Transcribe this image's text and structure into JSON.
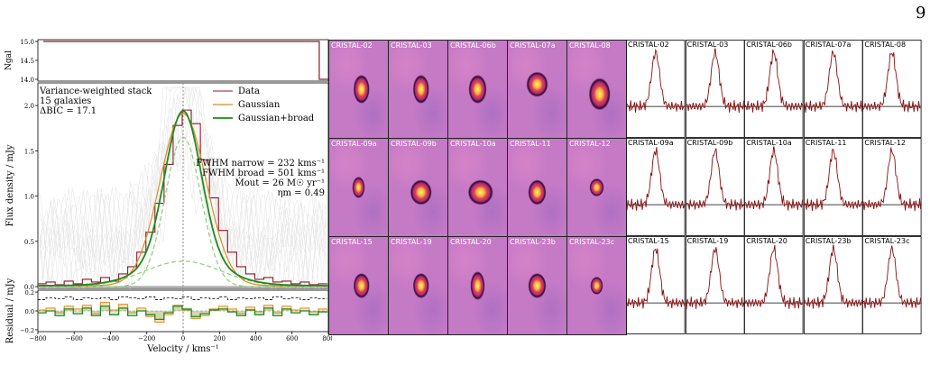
{
  "page_number": "9",
  "colors": {
    "data": "#8b1a2b",
    "gaussian": "#e08a1e",
    "gaussian_broad": "#1f8a1f",
    "component_dashed": "#8ccf7a",
    "thumb_bg": "#c57ac6",
    "spectrum_line": "#8b1010",
    "axis": "#000000"
  },
  "main_panel": {
    "annotation_lines": [
      "Variance-weighted stack",
      "15 galaxies",
      "ΔBIC = 17.1"
    ],
    "fit_lines": [
      "FWHM narrow = 232 kms⁻¹",
      "FWHM broad = 501 kms⁻¹",
      "Ṁout = 26 M☉ yr⁻¹",
      "ηm = 0.49"
    ]
  },
  "chart_data": [
    {
      "type": "line",
      "panel": "ngal",
      "ylabel": "Ngal",
      "yticks": [
        "15.0",
        "14.5",
        "14.0"
      ],
      "ylim": [
        14.0,
        15.0
      ],
      "xlim": [
        -800,
        800
      ],
      "series": [
        {
          "x": [
            -770,
            750,
            750,
            800
          ],
          "values": [
            15,
            15,
            14,
            14
          ]
        }
      ]
    },
    {
      "type": "line",
      "panel": "spectrum",
      "xlabel": "",
      "ylabel": "Flux density / mJy",
      "xlim": [
        -800,
        800
      ],
      "ylim": [
        -0.02,
        2.25
      ],
      "yticks": [
        "0.0",
        "0.5",
        "1.0",
        "1.5",
        "2.0"
      ],
      "legend": [
        "Data",
        "Gaussian",
        "Gaussian+broad"
      ],
      "legend_position": "top-right",
      "series": [
        {
          "name": "Data",
          "kind": "step",
          "x": [
            -780,
            -730,
            -680,
            -630,
            -580,
            -530,
            -480,
            -430,
            -380,
            -330,
            -280,
            -230,
            -180,
            -130,
            -80,
            -30,
            20,
            70,
            120,
            170,
            220,
            270,
            320,
            370,
            420,
            470,
            520,
            570,
            620,
            670,
            720,
            770
          ],
          "values": [
            0.03,
            0.05,
            0.02,
            0.06,
            0.03,
            0.08,
            0.05,
            0.1,
            0.06,
            0.14,
            0.22,
            0.38,
            0.6,
            0.92,
            1.35,
            1.78,
            1.95,
            1.8,
            1.4,
            0.98,
            0.62,
            0.38,
            0.22,
            0.14,
            0.08,
            0.1,
            0.05,
            0.06,
            0.03,
            0.05,
            0.02,
            0.03
          ]
        },
        {
          "name": "Gaussian",
          "x0": 0,
          "amp": 1.9,
          "fwhm": 300,
          "offset": 0.01
        },
        {
          "name": "Gaussian+broad",
          "x0": 0,
          "amp_narrow": 1.65,
          "fwhm_narrow": 232,
          "amp_broad": 0.28,
          "fwhm_broad": 501,
          "offset": 0.01
        },
        {
          "name": "narrow component",
          "style": "dashed",
          "x0": 0,
          "amp": 1.65,
          "fwhm": 232,
          "offset": 0.0
        },
        {
          "name": "broad component",
          "style": "dashed",
          "x0": 0,
          "amp": 0.28,
          "fwhm": 501,
          "offset": 0.0
        }
      ]
    },
    {
      "type": "line",
      "panel": "residual",
      "xlabel": "Velocity / kms⁻¹",
      "ylabel": "Residual / mJy",
      "xlim": [
        -800,
        800
      ],
      "ylim": [
        -0.22,
        0.22
      ],
      "xticks": [
        "−800",
        "−600",
        "−400",
        "−200",
        "0",
        "200",
        "400",
        "600",
        "800"
      ],
      "yticks": [
        "0.2",
        "0.0",
        "−0.2"
      ],
      "x": [
        -780,
        -730,
        -680,
        -630,
        -580,
        -530,
        -480,
        -430,
        -380,
        -330,
        -280,
        -230,
        -180,
        -130,
        -80,
        -30,
        20,
        70,
        120,
        170,
        220,
        270,
        320,
        370,
        420,
        470,
        520,
        570,
        620,
        670,
        720,
        770
      ],
      "series": [
        {
          "name": "noise upper",
          "style": "dashed",
          "values": [
            0.12,
            0.14,
            0.13,
            0.15,
            0.12,
            0.14,
            0.13,
            0.14,
            0.12,
            0.15,
            0.14,
            0.13,
            0.15,
            0.12,
            0.14,
            0.13,
            0.15,
            0.12,
            0.14,
            0.13,
            0.15,
            0.12,
            0.14,
            0.13,
            0.14,
            0.12,
            0.15,
            0.13,
            0.14,
            0.12,
            0.14,
            0.13
          ]
        },
        {
          "name": "Gaussian residual",
          "values": [
            0.01,
            0.03,
            -0.02,
            0.05,
            0.02,
            0.06,
            -0.03,
            0.09,
            0.01,
            0.07,
            -0.02,
            0.03,
            -0.06,
            -0.12,
            -0.04,
            0.06,
            0.01,
            -0.08,
            -0.05,
            0.02,
            0.05,
            0.02,
            -0.03,
            0.04,
            -0.01,
            0.06,
            -0.02,
            0.05,
            0.01,
            0.03,
            -0.01,
            0.02
          ]
        },
        {
          "name": "Gaussian+broad residual",
          "values": [
            -0.02,
            0.0,
            -0.05,
            0.02,
            -0.03,
            0.03,
            -0.05,
            0.05,
            -0.04,
            0.03,
            -0.05,
            0.0,
            -0.04,
            -0.09,
            -0.02,
            0.05,
            0.02,
            -0.06,
            -0.03,
            0.01,
            0.02,
            -0.01,
            -0.05,
            0.01,
            -0.04,
            0.03,
            -0.05,
            0.02,
            -0.02,
            0.0,
            -0.04,
            -0.01
          ]
        }
      ]
    }
  ],
  "thumbnails": {
    "rows": [
      [
        "CRISTAL-02",
        "CRISTAL-03",
        "CRISTAL-06b",
        "CRISTAL-07a",
        "CRISTAL-08"
      ],
      [
        "CRISTAL-09a",
        "CRISTAL-09b",
        "CRISTAL-10a",
        "CRISTAL-11",
        "CRISTAL-12"
      ],
      [
        "CRISTAL-15",
        "CRISTAL-19",
        "CRISTAL-20",
        "CRISTAL-23b",
        "CRISTAL-23c"
      ]
    ]
  },
  "spectra": {
    "rows": [
      [
        "CRISTAL-02",
        "CRISTAL-03",
        "CRISTAL-06b",
        "CRISTAL-07a",
        "CRISTAL-08"
      ],
      [
        "CRISTAL-09a",
        "CRISTAL-09b",
        "CRISTAL-10a",
        "CRISTAL-11",
        "CRISTAL-12"
      ],
      [
        "CRISTAL-15",
        "CRISTAL-19",
        "CRISTAL-20",
        "CRISTAL-23b",
        "CRISTAL-23c"
      ]
    ]
  }
}
